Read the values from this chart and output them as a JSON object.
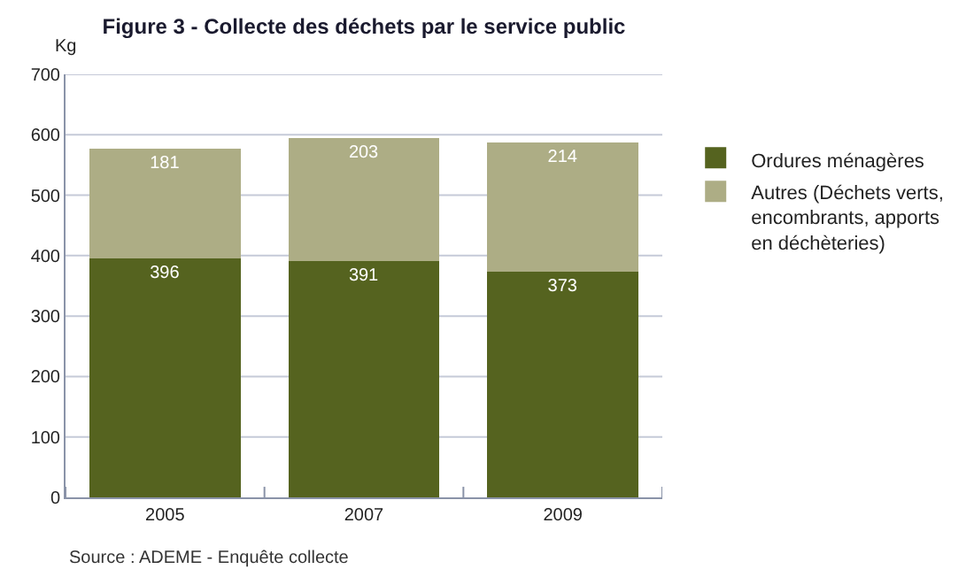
{
  "chart_data": {
    "type": "bar",
    "title": "Figure 3 - Collecte des déchets par le service public",
    "ylabel": "Kg",
    "categories": [
      "2005",
      "2007",
      "2009"
    ],
    "stacked": true,
    "series": [
      {
        "name": "Ordures ménagères",
        "color": "#55631f",
        "values": [
          396,
          391,
          373
        ]
      },
      {
        "name": "Autres (Déchets verts, encombrants, apports en déchèteries)",
        "color": "#adad85",
        "values": [
          181,
          203,
          214
        ]
      }
    ],
    "ylim": [
      0,
      700
    ],
    "yticks": [
      0,
      100,
      200,
      300,
      400,
      500,
      600,
      700
    ],
    "grid": "y",
    "legend": "top right",
    "data_labels": true,
    "annotations": [
      "Source : ADEME - Enquête collecte"
    ]
  }
}
